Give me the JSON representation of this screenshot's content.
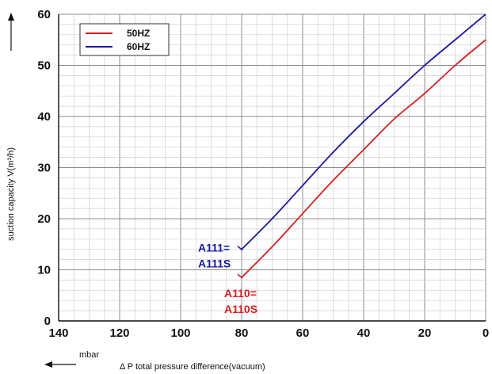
{
  "chart_data": {
    "type": "line",
    "xlabel_unit": "mbar",
    "xlabel": "Δ P total pressure difference(vacuum)",
    "ylabel": "suction capacity V(m³/h)",
    "xlim": [
      140,
      0
    ],
    "ylim": [
      0,
      60
    ],
    "x_ticks": [
      "140",
      "120",
      "100",
      "80",
      "60",
      "40",
      "20",
      "0"
    ],
    "y_ticks": [
      "0",
      "10",
      "20",
      "30",
      "40",
      "50",
      "60"
    ],
    "grid": true,
    "legend_position": "top-left",
    "series": [
      {
        "name": "50HZ",
        "color": "#d42020",
        "x": [
          80,
          70,
          60,
          50,
          40,
          30,
          20,
          10,
          0
        ],
        "y": [
          8.5,
          14.5,
          21,
          27.5,
          33.5,
          39.5,
          44.5,
          50,
          55
        ]
      },
      {
        "name": "60HZ",
        "color": "#1a1aa6",
        "x": [
          80,
          70,
          60,
          50,
          40,
          30,
          20,
          10,
          0
        ],
        "y": [
          14,
          20,
          26.5,
          33,
          39,
          44.5,
          50,
          55,
          60
        ]
      }
    ],
    "annotations": [
      {
        "lines": [
          "A111=",
          "A111S"
        ],
        "color": "#1a1aa6",
        "x": 80,
        "y": 14
      },
      {
        "lines": [
          "A110=",
          "A110S"
        ],
        "color": "#d42020",
        "x": 80,
        "y": 8.5
      }
    ]
  }
}
